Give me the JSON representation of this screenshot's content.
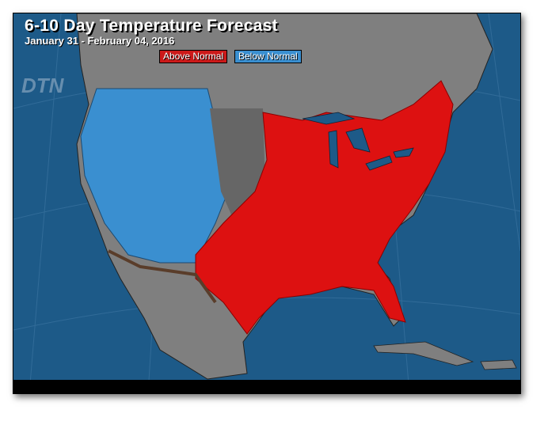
{
  "title": "6-10 Day Temperature Forecast",
  "dates": "January 31 - February 04, 2016",
  "legend": {
    "above": "Above Normal",
    "below": "Below Normal"
  },
  "logo": "DTN",
  "colors": {
    "ocean": "#1d5a88",
    "land": "#7f7f7f",
    "above": "#dd1111",
    "below": "#3a8fd0",
    "normal": "#666666"
  },
  "regions": {
    "above": "Central and Eastern US, Southern Plains, Texas, Florida",
    "below": "Western US"
  }
}
